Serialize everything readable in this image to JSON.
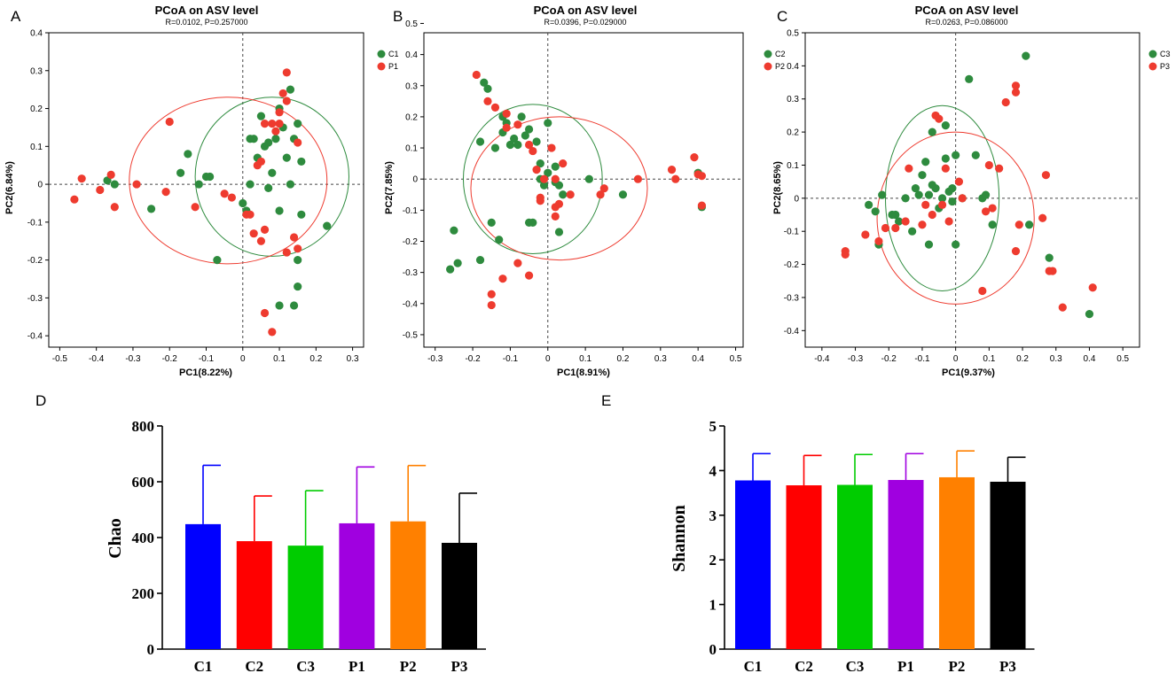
{
  "colors": {
    "green": "#2e8b3e",
    "red": "#ee3b2f",
    "bars": [
      "#0000ff",
      "#ff0000",
      "#00cc00",
      "#a000e0",
      "#ff8000",
      "#000000"
    ]
  },
  "panels": {
    "A": {
      "letter": "A",
      "title": "PCoA on ASV level",
      "subtitle": "R=0.0102, P=0.257000",
      "xlabel": "PC1(8.22%)",
      "ylabel": "PC2(6.84%)",
      "xticks": [
        "-0.5",
        "-0.4",
        "-0.3",
        "-0.2",
        "-0.1",
        "0",
        "0.1",
        "0.2",
        "0.3"
      ],
      "yticks": [
        "-0.4",
        "-0.3",
        "-0.2",
        "-0.1",
        "0",
        "0.1",
        "0.2",
        "0.3",
        "0.4"
      ],
      "legend": [
        "C1",
        "P1"
      ]
    },
    "B": {
      "letter": "B",
      "title": "PCoA on ASV level",
      "subtitle": "R=0.0396, P=0.029000",
      "xlabel": "PC1(8.91%)",
      "ylabel": "PC2(7.85%)",
      "xticks": [
        "-0.3",
        "-0.2",
        "-0.1",
        "0",
        "0.1",
        "0.2",
        "0.3",
        "0.4",
        "0.5"
      ],
      "yticks": [
        "-0.5",
        "-0.4",
        "-0.3",
        "-0.2",
        "-0.1",
        "0",
        "0.1",
        "0.2",
        "0.3",
        "0.4",
        "0.5"
      ],
      "legend": [
        "C2",
        "P2"
      ]
    },
    "C": {
      "letter": "C",
      "title": "PCoA on ASV level",
      "subtitle": "R=0.0263, P=0.086000",
      "xlabel": "PC1(9.37%)",
      "ylabel": "PC2(8.65%)",
      "xticks": [
        "-0.4",
        "-0.3",
        "-0.2",
        "-0.1",
        "0",
        "0.1",
        "0.2",
        "0.3",
        "0.4",
        "0.5"
      ],
      "yticks": [
        "-0.4",
        "-0.3",
        "-0.2",
        "-0.1",
        "0",
        "0.1",
        "0.2",
        "0.3",
        "0.4",
        "0.5"
      ],
      "legend": [
        "C3",
        "P3"
      ]
    },
    "D": {
      "letter": "D",
      "ylabel": "Chao",
      "yticks": [
        "0",
        "200",
        "400",
        "600",
        "800"
      ],
      "categories": [
        "C1",
        "C2",
        "C3",
        "P1",
        "P2",
        "P3"
      ]
    },
    "E": {
      "letter": "E",
      "ylabel": "Shannon",
      "yticks": [
        "0",
        "1",
        "2",
        "3",
        "4",
        "5"
      ],
      "categories": [
        "C1",
        "C2",
        "C3",
        "P1",
        "P2",
        "P3"
      ]
    }
  },
  "chart_data": [
    {
      "type": "scatter",
      "panel": "A",
      "title": "PCoA on ASV level",
      "subtitle": "R=0.0102, P=0.257000",
      "xlabel": "PC1(8.22%)",
      "ylabel": "PC2(6.84%)",
      "xlim": [
        -0.53,
        0.33
      ],
      "ylim": [
        -0.43,
        0.4
      ],
      "series": [
        {
          "name": "C1",
          "points": [
            [
              -0.37,
              0.01
            ],
            [
              -0.35,
              0.0
            ],
            [
              -0.25,
              -0.065
            ],
            [
              -0.17,
              0.03
            ],
            [
              -0.15,
              0.08
            ],
            [
              -0.12,
              0.0
            ],
            [
              -0.1,
              0.02
            ],
            [
              -0.09,
              0.02
            ],
            [
              -0.07,
              -0.2
            ],
            [
              0.0,
              -0.05
            ],
            [
              0.01,
              -0.07
            ],
            [
              0.02,
              0.12
            ],
            [
              0.03,
              0.12
            ],
            [
              0.04,
              0.07
            ],
            [
              0.05,
              0.18
            ],
            [
              0.06,
              0.1
            ],
            [
              0.07,
              -0.01
            ],
            [
              0.08,
              0.03
            ],
            [
              0.09,
              0.12
            ],
            [
              0.1,
              0.2
            ],
            [
              0.11,
              0.15
            ],
            [
              0.12,
              0.07
            ],
            [
              0.13,
              0.25
            ],
            [
              0.13,
              0.0
            ],
            [
              0.14,
              0.12
            ],
            [
              0.15,
              0.16
            ],
            [
              0.16,
              0.06
            ],
            [
              0.1,
              -0.07
            ],
            [
              0.16,
              -0.08
            ],
            [
              0.15,
              -0.2
            ],
            [
              0.15,
              -0.27
            ],
            [
              0.14,
              -0.32
            ],
            [
              0.1,
              -0.32
            ],
            [
              0.23,
              -0.11
            ],
            [
              0.02,
              0.0
            ],
            [
              0.07,
              0.11
            ]
          ]
        },
        {
          "name": "P1",
          "points": [
            [
              -0.46,
              -0.04
            ],
            [
              -0.44,
              0.015
            ],
            [
              -0.39,
              -0.015
            ],
            [
              -0.36,
              0.025
            ],
            [
              -0.35,
              -0.06
            ],
            [
              -0.29,
              0.0
            ],
            [
              -0.21,
              -0.02
            ],
            [
              -0.2,
              0.165
            ],
            [
              -0.13,
              -0.06
            ],
            [
              -0.05,
              -0.025
            ],
            [
              -0.03,
              -0.035
            ],
            [
              0.01,
              -0.08
            ],
            [
              0.02,
              -0.08
            ],
            [
              0.04,
              0.05
            ],
            [
              0.05,
              0.06
            ],
            [
              0.05,
              -0.15
            ],
            [
              0.06,
              -0.12
            ],
            [
              0.08,
              0.16
            ],
            [
              0.09,
              0.14
            ],
            [
              0.1,
              0.19
            ],
            [
              0.1,
              0.16
            ],
            [
              0.11,
              0.24
            ],
            [
              0.12,
              0.22
            ],
            [
              0.12,
              0.295
            ],
            [
              0.12,
              -0.18
            ],
            [
              0.14,
              -0.14
            ],
            [
              0.15,
              -0.17
            ],
            [
              0.06,
              -0.34
            ],
            [
              0.08,
              -0.39
            ],
            [
              0.03,
              -0.13
            ],
            [
              0.15,
              0.11
            ],
            [
              0.06,
              0.16
            ]
          ]
        }
      ]
    },
    {
      "type": "scatter",
      "panel": "B",
      "title": "PCoA on ASV level",
      "subtitle": "R=0.0396, P=0.029000",
      "xlabel": "PC1(8.91%)",
      "ylabel": "PC2(7.85%)",
      "xlim": [
        -0.33,
        0.52
      ],
      "ylim": [
        -0.54,
        0.47
      ],
      "series": [
        {
          "name": "C2",
          "points": [
            [
              -0.26,
              -0.29
            ],
            [
              -0.25,
              -0.165
            ],
            [
              -0.24,
              -0.27
            ],
            [
              -0.18,
              -0.26
            ],
            [
              -0.18,
              0.12
            ],
            [
              -0.17,
              0.31
            ],
            [
              -0.16,
              0.29
            ],
            [
              -0.15,
              -0.14
            ],
            [
              -0.14,
              0.1
            ],
            [
              -0.13,
              -0.195
            ],
            [
              -0.12,
              0.15
            ],
            [
              -0.12,
              0.2
            ],
            [
              -0.11,
              0.18
            ],
            [
              -0.1,
              0.11
            ],
            [
              -0.09,
              0.13
            ],
            [
              -0.08,
              0.11
            ],
            [
              -0.07,
              0.2
            ],
            [
              -0.06,
              0.14
            ],
            [
              -0.05,
              0.16
            ],
            [
              -0.04,
              -0.14
            ],
            [
              -0.03,
              0.12
            ],
            [
              -0.02,
              0.0
            ],
            [
              -0.02,
              0.05
            ],
            [
              -0.01,
              -0.02
            ],
            [
              0.0,
              0.02
            ],
            [
              0.0,
              0.18
            ],
            [
              0.02,
              0.04
            ],
            [
              0.02,
              -0.01
            ],
            [
              0.03,
              -0.02
            ],
            [
              0.04,
              -0.05
            ],
            [
              0.03,
              -0.17
            ],
            [
              0.11,
              0.0
            ],
            [
              0.2,
              -0.05
            ],
            [
              0.4,
              0.02
            ],
            [
              0.41,
              -0.09
            ],
            [
              -0.05,
              -0.14
            ]
          ]
        },
        {
          "name": "P2",
          "points": [
            [
              -0.19,
              0.335
            ],
            [
              -0.16,
              0.25
            ],
            [
              -0.15,
              -0.37
            ],
            [
              -0.15,
              -0.405
            ],
            [
              -0.14,
              0.23
            ],
            [
              -0.12,
              -0.32
            ],
            [
              -0.11,
              0.165
            ],
            [
              -0.11,
              0.21
            ],
            [
              -0.08,
              0.175
            ],
            [
              -0.05,
              -0.31
            ],
            [
              -0.05,
              0.11
            ],
            [
              -0.04,
              0.09
            ],
            [
              -0.03,
              0.03
            ],
            [
              -0.02,
              -0.06
            ],
            [
              -0.02,
              -0.07
            ],
            [
              -0.01,
              0.0
            ],
            [
              0.01,
              0.1
            ],
            [
              0.02,
              -0.12
            ],
            [
              0.02,
              -0.09
            ],
            [
              0.02,
              0.0
            ],
            [
              0.03,
              -0.08
            ],
            [
              0.04,
              0.05
            ],
            [
              0.06,
              -0.05
            ],
            [
              0.14,
              -0.05
            ],
            [
              0.15,
              -0.03
            ],
            [
              0.24,
              0.0
            ],
            [
              0.33,
              0.03
            ],
            [
              0.34,
              0.0
            ],
            [
              0.39,
              0.07
            ],
            [
              0.4,
              0.015
            ],
            [
              0.41,
              0.01
            ],
            [
              0.41,
              -0.085
            ],
            [
              -0.08,
              -0.27
            ]
          ]
        }
      ]
    },
    {
      "type": "scatter",
      "panel": "C",
      "title": "PCoA on ASV level",
      "subtitle": "R=0.0263, P=0.086000",
      "xlabel": "PC1(9.37%)",
      "ylabel": "PC2(8.65%)",
      "xlim": [
        -0.45,
        0.55
      ],
      "ylim": [
        -0.45,
        0.5
      ],
      "series": [
        {
          "name": "C3",
          "points": [
            [
              -0.26,
              -0.02
            ],
            [
              -0.24,
              -0.04
            ],
            [
              -0.23,
              -0.14
            ],
            [
              -0.22,
              0.01
            ],
            [
              -0.19,
              -0.05
            ],
            [
              -0.18,
              -0.05
            ],
            [
              -0.17,
              -0.07
            ],
            [
              -0.15,
              0.0
            ],
            [
              -0.12,
              0.03
            ],
            [
              -0.11,
              0.01
            ],
            [
              -0.1,
              0.07
            ],
            [
              -0.09,
              0.11
            ],
            [
              -0.08,
              0.01
            ],
            [
              -0.07,
              0.2
            ],
            [
              -0.07,
              0.04
            ],
            [
              -0.06,
              0.03
            ],
            [
              -0.05,
              -0.03
            ],
            [
              -0.04,
              0.0
            ],
            [
              -0.03,
              0.12
            ],
            [
              -0.03,
              0.22
            ],
            [
              -0.02,
              0.02
            ],
            [
              -0.01,
              0.03
            ],
            [
              -0.01,
              -0.01
            ],
            [
              0.0,
              0.13
            ],
            [
              0.02,
              0.0
            ],
            [
              0.04,
              0.36
            ],
            [
              0.06,
              0.13
            ],
            [
              0.08,
              0.0
            ],
            [
              0.09,
              0.01
            ],
            [
              0.11,
              -0.08
            ],
            [
              0.21,
              0.43
            ],
            [
              0.22,
              -0.08
            ],
            [
              0.28,
              -0.18
            ],
            [
              0.4,
              -0.35
            ],
            [
              -0.13,
              -0.1
            ],
            [
              -0.08,
              -0.14
            ],
            [
              0.0,
              -0.14
            ]
          ]
        },
        {
          "name": "P3",
          "points": [
            [
              -0.33,
              -0.16
            ],
            [
              -0.33,
              -0.17
            ],
            [
              -0.27,
              -0.11
            ],
            [
              -0.23,
              -0.13
            ],
            [
              -0.21,
              -0.09
            ],
            [
              -0.18,
              -0.09
            ],
            [
              -0.15,
              -0.07
            ],
            [
              -0.14,
              0.09
            ],
            [
              -0.1,
              -0.08
            ],
            [
              -0.09,
              -0.02
            ],
            [
              -0.07,
              -0.05
            ],
            [
              -0.06,
              0.25
            ],
            [
              -0.05,
              0.24
            ],
            [
              -0.04,
              -0.02
            ],
            [
              -0.03,
              0.09
            ],
            [
              -0.02,
              -0.07
            ],
            [
              0.01,
              0.05
            ],
            [
              0.02,
              0.0
            ],
            [
              0.08,
              -0.28
            ],
            [
              0.09,
              -0.04
            ],
            [
              0.1,
              0.1
            ],
            [
              0.11,
              -0.03
            ],
            [
              0.13,
              0.09
            ],
            [
              0.15,
              0.29
            ],
            [
              0.18,
              0.32
            ],
            [
              0.18,
              0.34
            ],
            [
              0.18,
              -0.16
            ],
            [
              0.19,
              -0.08
            ],
            [
              0.26,
              -0.06
            ],
            [
              0.27,
              0.07
            ],
            [
              0.28,
              -0.22
            ],
            [
              0.29,
              -0.22
            ],
            [
              0.32,
              -0.33
            ],
            [
              0.41,
              -0.27
            ]
          ]
        }
      ]
    },
    {
      "type": "bar",
      "panel": "D",
      "ylabel": "Chao",
      "categories": [
        "C1",
        "C2",
        "C3",
        "P1",
        "P2",
        "P3"
      ],
      "values": [
        448,
        387,
        371,
        451,
        458,
        381
      ],
      "error": [
        211,
        162,
        197,
        202,
        200,
        178
      ],
      "ylim": [
        0,
        800
      ]
    },
    {
      "type": "bar",
      "panel": "E",
      "ylabel": "Shannon",
      "categories": [
        "C1",
        "C2",
        "C3",
        "P1",
        "P2",
        "P3"
      ],
      "values": [
        3.78,
        3.67,
        3.68,
        3.79,
        3.85,
        3.75
      ],
      "error": [
        0.6,
        0.67,
        0.68,
        0.59,
        0.59,
        0.55
      ],
      "ylim": [
        0,
        5
      ]
    }
  ]
}
